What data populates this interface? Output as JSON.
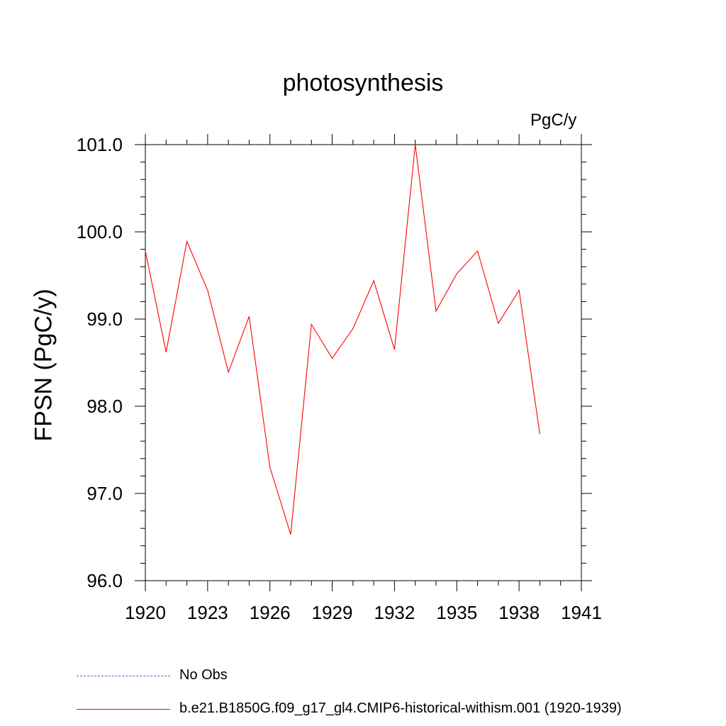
{
  "chart_data": {
    "type": "line",
    "title": "photosynthesis",
    "units_label": "PgC/y",
    "ylabel": "FPSN  (PgC/y)",
    "xlabel": "",
    "xlim": [
      1920,
      1941
    ],
    "ylim": [
      96.0,
      101.0
    ],
    "x_ticks": [
      1920,
      1923,
      1926,
      1929,
      1932,
      1935,
      1938,
      1941
    ],
    "y_ticks": [
      "96.0",
      "97.0",
      "98.0",
      "99.0",
      "100.0",
      "101.0"
    ],
    "series": [
      {
        "name": "b.e21.B1850G.f09_g17_gl4.CMIP6-historical-withism.001 (1920-1939)",
        "color": "#ff0000",
        "x": [
          1920,
          1921,
          1922,
          1923,
          1924,
          1925,
          1926,
          1927,
          1928,
          1929,
          1930,
          1931,
          1932,
          1933,
          1934,
          1935,
          1936,
          1937,
          1938,
          1939
        ],
        "y": [
          99.78,
          98.62,
          99.89,
          99.33,
          98.39,
          99.03,
          97.3,
          96.53,
          98.94,
          98.55,
          98.89,
          99.44,
          98.65,
          101.0,
          99.09,
          99.52,
          99.78,
          98.95,
          99.33,
          97.68
        ]
      }
    ],
    "legend": [
      {
        "label": "No Obs",
        "color": "#6a5acd",
        "style": "dashed"
      },
      {
        "label": "b.e21.B1850G.f09_g17_gl4.CMIP6-historical-withism.001 (1920-1939)",
        "color": "#ff0000",
        "style": "solid"
      }
    ],
    "legend_placement": "bottom-left",
    "grid": false
  }
}
